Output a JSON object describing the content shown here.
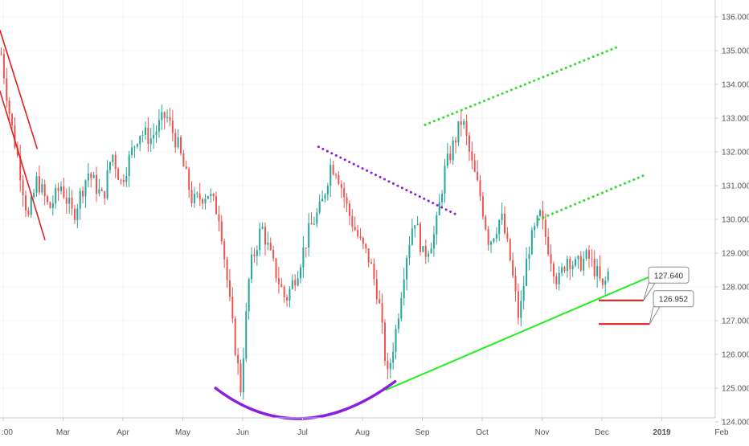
{
  "chart_data": {
    "type": "candlestick",
    "title": "",
    "xlabel": "",
    "ylabel": "",
    "ylim": [
      124.0,
      136.4
    ],
    "y_ticks": [
      "136.000",
      "135.000",
      "134.000",
      "133.000",
      "132.000",
      "131.000",
      "130.000",
      "129.000",
      "128.000",
      "127.000",
      "126.000",
      "125.000",
      "124.000"
    ],
    "x_ticks": [
      {
        "label": ":00",
        "month": 0
      },
      {
        "label": "Mar",
        "month": 1
      },
      {
        "label": "Apr",
        "month": 2
      },
      {
        "label": "May",
        "month": 3
      },
      {
        "label": "Jun",
        "month": 4
      },
      {
        "label": "Jul",
        "month": 5
      },
      {
        "label": "Aug",
        "month": 6
      },
      {
        "label": "Sep",
        "month": 7
      },
      {
        "label": "Oct",
        "month": 8
      },
      {
        "label": "Nov",
        "month": 9
      },
      {
        "label": "Dec",
        "month": 10
      },
      {
        "label": "2019",
        "month": 11
      },
      {
        "label": "Feb",
        "month": 12
      }
    ],
    "grid": true,
    "colors": {
      "up": "#26a69a",
      "down": "#ef5350",
      "trend_green": "#22ee22",
      "trend_red": "#e02020",
      "purple": "#8a1fe0",
      "dotted_green": "#2edc2e",
      "axis_text": "#555555",
      "grid": "#f0f3f5"
    },
    "anchors": [
      [
        0.0,
        134.9
      ],
      [
        0.15,
        133.0
      ],
      [
        0.3,
        131.6
      ],
      [
        0.45,
        130.0
      ],
      [
        0.6,
        131.2
      ],
      [
        0.8,
        130.3
      ],
      [
        1.0,
        131.0
      ],
      [
        1.2,
        130.1
      ],
      [
        1.45,
        131.4
      ],
      [
        1.7,
        130.6
      ],
      [
        1.85,
        132.0
      ],
      [
        2.0,
        131.1
      ],
      [
        2.3,
        132.6
      ],
      [
        2.5,
        132.4
      ],
      [
        2.75,
        133.1
      ],
      [
        2.95,
        132.2
      ],
      [
        3.2,
        130.5
      ],
      [
        3.45,
        130.8
      ],
      [
        3.65,
        130.1
      ],
      [
        3.85,
        127.0
      ],
      [
        4.0,
        125.0
      ],
      [
        4.15,
        128.5
      ],
      [
        4.35,
        129.8
      ],
      [
        4.55,
        128.6
      ],
      [
        4.75,
        127.6
      ],
      [
        4.95,
        128.5
      ],
      [
        5.15,
        129.7
      ],
      [
        5.35,
        130.4
      ],
      [
        5.5,
        131.6
      ],
      [
        5.6,
        131.5
      ],
      [
        5.8,
        130.2
      ],
      [
        6.0,
        129.3
      ],
      [
        6.15,
        128.8
      ],
      [
        6.3,
        127.7
      ],
      [
        6.45,
        125.3
      ],
      [
        6.6,
        126.8
      ],
      [
        6.75,
        128.8
      ],
      [
        6.9,
        130.1
      ],
      [
        7.05,
        128.9
      ],
      [
        7.25,
        129.6
      ],
      [
        7.4,
        131.4
      ],
      [
        7.55,
        132.2
      ],
      [
        7.7,
        133.0
      ],
      [
        7.85,
        131.7
      ],
      [
        8.0,
        130.7
      ],
      [
        8.15,
        129.3
      ],
      [
        8.35,
        130.1
      ],
      [
        8.5,
        128.8
      ],
      [
        8.65,
        127.0
      ],
      [
        8.8,
        129.1
      ],
      [
        9.0,
        130.1
      ],
      [
        9.15,
        129.1
      ],
      [
        9.3,
        128.1
      ],
      [
        9.45,
        128.9
      ],
      [
        9.6,
        128.6
      ],
      [
        9.8,
        128.9
      ],
      [
        9.95,
        128.4
      ],
      [
        10.05,
        127.9
      ],
      [
        10.15,
        128.5
      ]
    ],
    "trendlines": {
      "green_support": {
        "from": [
          6.45,
          124.95
        ],
        "to": [
          10.85,
          128.3
        ]
      },
      "red_channel_upper": {
        "from": [
          0.0,
          135.6
        ],
        "to": [
          0.62,
          132.1
        ]
      },
      "red_channel_lower": {
        "from": [
          0.0,
          133.8
        ],
        "to": [
          0.75,
          129.4
        ]
      },
      "purple_dotted": {
        "from": [
          5.32,
          132.15
        ],
        "to": [
          7.67,
          130.1
        ]
      },
      "green_dotted_upper": {
        "from": [
          7.1,
          132.8
        ],
        "to": [
          10.3,
          135.1
        ]
      },
      "green_dotted_lower": {
        "from": [
          9.0,
          130.0
        ],
        "to": [
          10.75,
          131.3
        ]
      },
      "purple_arc": {
        "start": [
          3.6,
          125.0
        ],
        "control": [
          5.0,
          123.1
        ],
        "end": [
          6.6,
          125.2
        ]
      }
    },
    "horizontal_levels": [
      {
        "from_month": 10.0,
        "to_month": 10.75,
        "y": 127.6
      },
      {
        "from_month": 10.0,
        "to_month": 10.85,
        "y": 126.9
      }
    ],
    "callouts": [
      {
        "label": "127.640",
        "y": 128.35
      },
      {
        "label": "126.952",
        "y": 127.65
      }
    ]
  }
}
